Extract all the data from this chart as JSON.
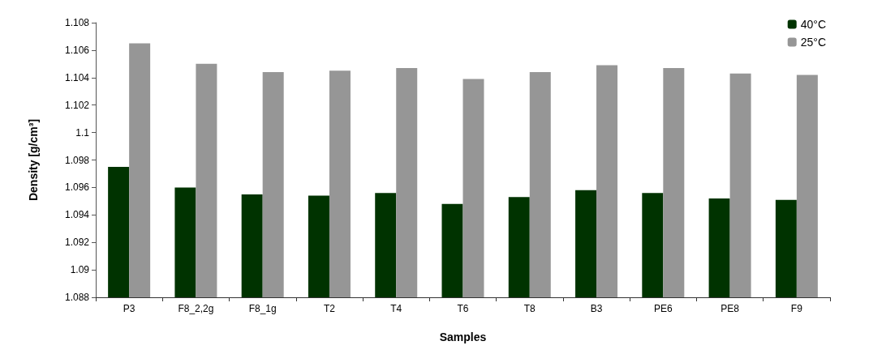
{
  "chart_data": {
    "type": "bar",
    "xlabel": "Samples",
    "ylabel": "Density [g/cm³]",
    "categories": [
      "P3",
      "F8_2,2g",
      "F8_1g",
      "T2",
      "T4",
      "T6",
      "T8",
      "B3",
      "PE6",
      "PE8",
      "F9"
    ],
    "series": [
      {
        "name": "40°C",
        "color": "#003300",
        "values": [
          1.0975,
          1.096,
          1.0955,
          1.0954,
          1.0956,
          1.0948,
          1.0953,
          1.0958,
          1.0956,
          1.0952,
          1.0951
        ]
      },
      {
        "name": "25°C",
        "color": "#969696",
        "values": [
          1.1065,
          1.105,
          1.1044,
          1.1045,
          1.1047,
          1.1039,
          1.1044,
          1.1049,
          1.1047,
          1.1043,
          1.1042
        ]
      }
    ],
    "ylim": [
      1.088,
      1.108
    ],
    "yticks": [
      1.088,
      1.09,
      1.092,
      1.094,
      1.096,
      1.098,
      1.1,
      1.102,
      1.104,
      1.106,
      1.108
    ],
    "legend": "top right"
  }
}
